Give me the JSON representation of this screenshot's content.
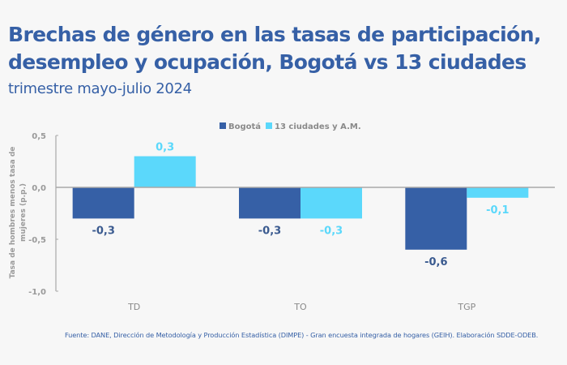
{
  "header": {
    "title_line1": "Brechas de género en las tasas de participación,",
    "title_line2": "desempleo y ocupación, Bogotá vs 13 ciudades",
    "subtitle": "trimestre mayo-julio 2024"
  },
  "source": "Fuente: DANE, Dirección de Metodología y Producción Estadística (DIMPE) - Gran encuesta integrada de hogares (GEIH). Elaboración SDDE-ODEB.",
  "chart_data": {
    "type": "bar",
    "title": "Brechas de género en las tasas de participación, desempleo y ocupación, Bogotá vs 13 ciudades",
    "subtitle": "trimestre mayo-julio 2024",
    "categories": [
      "TD",
      "TO",
      "TGP"
    ],
    "series": [
      {
        "name": "Bogotá",
        "color": "#3660a6",
        "values": [
          -0.3,
          -0.3,
          -0.6
        ],
        "labels": [
          "-0,3",
          "-0,3",
          "-0,6"
        ]
      },
      {
        "name": "13 ciudades y A.M.",
        "color": "#5bd8fb",
        "values": [
          0.3,
          -0.3,
          -0.1
        ],
        "labels": [
          "0,3",
          "-0,3",
          "-0,1"
        ]
      }
    ],
    "xlabel": "",
    "ylabel": "Tasa de hombres menos tasa de mujeres (p.p.)",
    "ylabel_line1": "Tasa de hombres menos tasa de",
    "ylabel_line2": "mujeres (p.p.)",
    "ylim": [
      -1.0,
      0.5
    ],
    "yticks": [
      0.5,
      0.0,
      -0.5,
      -1.0
    ],
    "ytick_labels": [
      "0,5",
      "0,0",
      "-0,5",
      "-1,0"
    ],
    "grid": false,
    "legend_position": "top-center"
  }
}
